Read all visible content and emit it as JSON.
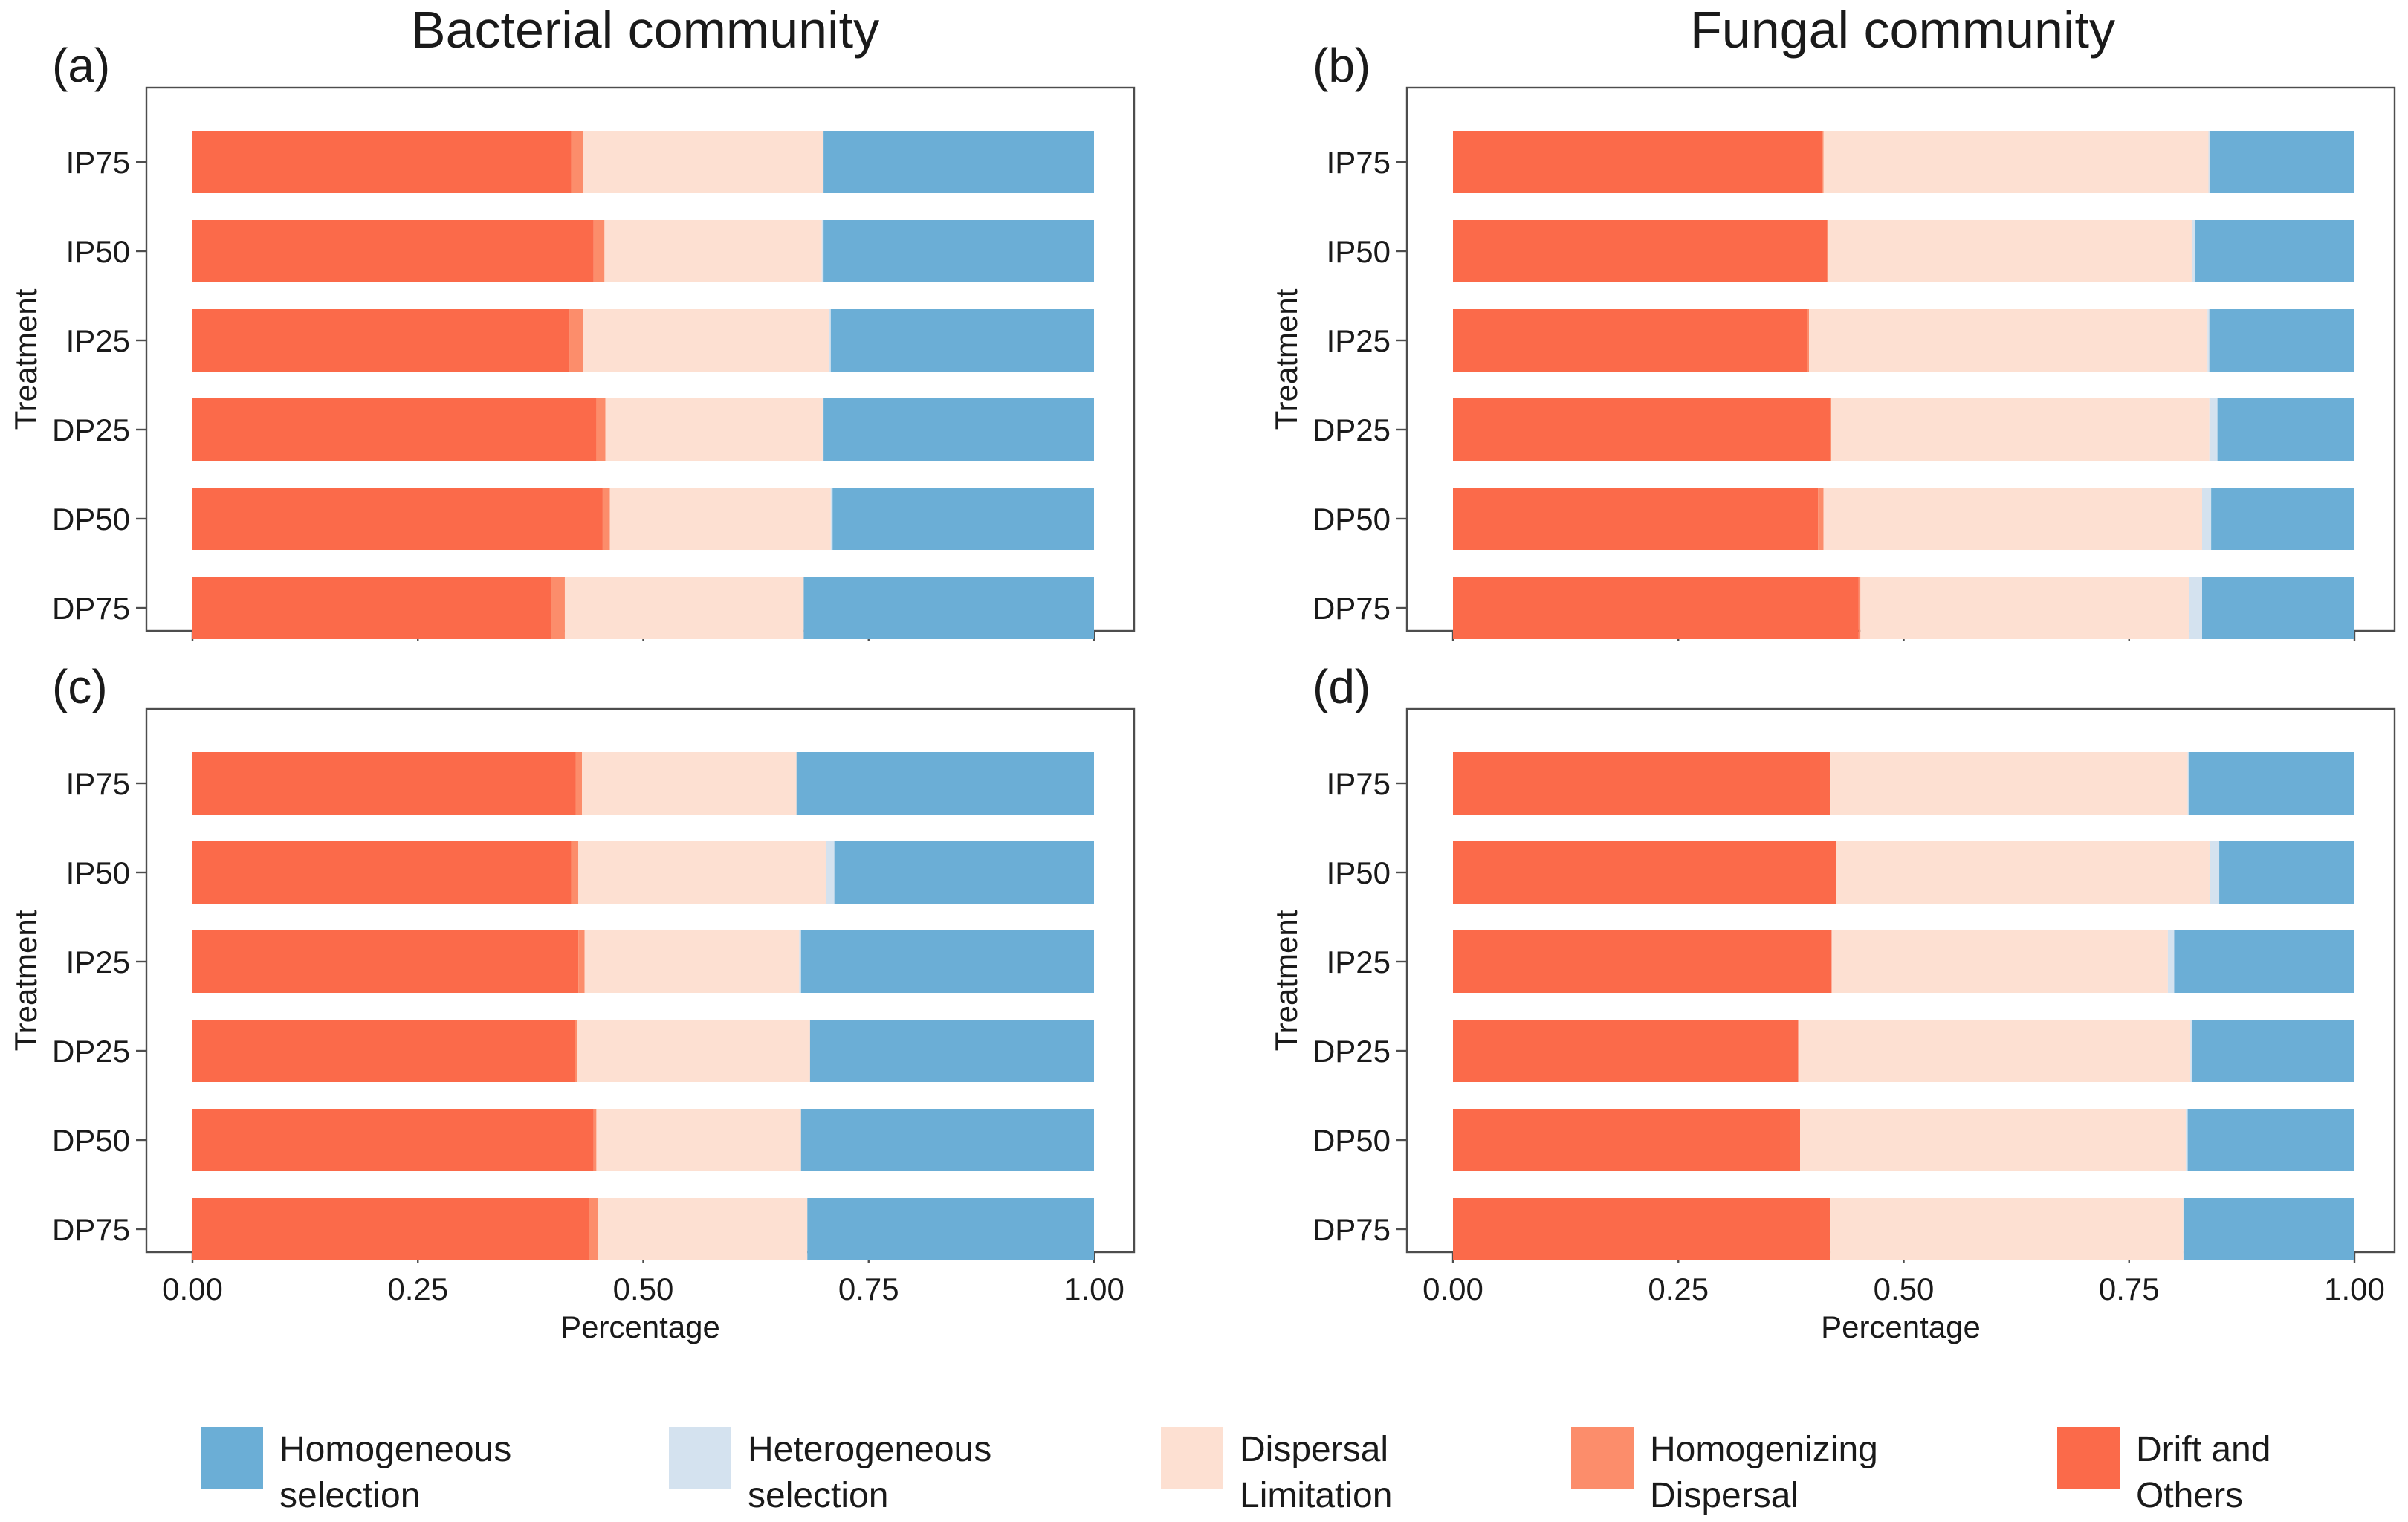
{
  "columns": [
    "Bacterial community",
    "Fungal community"
  ],
  "legend": [
    {
      "name": "Homogeneous selection",
      "line1": "Homogeneous",
      "line2": "selection",
      "color": "#6BAED6"
    },
    {
      "name": "Heterogeneous selection",
      "line1": "Heterogeneous",
      "line2": "selection",
      "color": "#D4E2EF"
    },
    {
      "name": "Dispersal Limitation",
      "line1": "Dispersal",
      "line2": "Limitation",
      "color": "#FDE0D2"
    },
    {
      "name": "Homogenizing Dispersal",
      "line1": "Homogenizing",
      "line2": "Dispersal",
      "color": "#FC8D6B"
    },
    {
      "name": "Drift and Others",
      "line1": "Drift and",
      "line2": "Others",
      "color": "#FB6A4A"
    }
  ],
  "chart_data": [
    {
      "panel": "(a)",
      "column": "Bacterial community",
      "type": "bar",
      "orientation": "horizontal",
      "stacked": true,
      "ylabel": "Treatment",
      "xlabel": "",
      "xlim": [
        0,
        1
      ],
      "xticks": [
        "0.00",
        "0.25",
        "0.50",
        "0.75",
        "1.00"
      ],
      "categories": [
        "IP75",
        "IP50",
        "IP25",
        "DP25",
        "DP50",
        "DP75"
      ],
      "series": [
        {
          "name": "Drift and Others",
          "values": [
            0.42,
            0.445,
            0.418,
            0.448,
            0.455,
            0.398
          ]
        },
        {
          "name": "Homogenizing Dispersal",
          "values": [
            0.013,
            0.012,
            0.015,
            0.01,
            0.008,
            0.015
          ]
        },
        {
          "name": "Dispersal Limitation",
          "values": [
            0.267,
            0.241,
            0.273,
            0.241,
            0.245,
            0.265
          ]
        },
        {
          "name": "Heterogeneous selection",
          "values": [
            0.0,
            0.002,
            0.002,
            0.001,
            0.002,
            0.0
          ]
        },
        {
          "name": "Homogeneous selection",
          "values": [
            0.3,
            0.3,
            0.292,
            0.3,
            0.29,
            0.322
          ]
        }
      ]
    },
    {
      "panel": "(b)",
      "column": "Fungal community",
      "type": "bar",
      "orientation": "horizontal",
      "stacked": true,
      "ylabel": "Treatment",
      "xlabel": "",
      "xlim": [
        0,
        1
      ],
      "xticks": [
        "0.00",
        "0.25",
        "0.50",
        "0.75",
        "1.00"
      ],
      "categories": [
        "IP75",
        "IP50",
        "IP25",
        "DP25",
        "DP50",
        "DP75"
      ],
      "series": [
        {
          "name": "Drift and Others",
          "values": [
            0.41,
            0.415,
            0.393,
            0.418,
            0.405,
            0.45
          ]
        },
        {
          "name": "Homogenizing Dispersal",
          "values": [
            0.001,
            0.001,
            0.002,
            0.001,
            0.006,
            0.002
          ]
        },
        {
          "name": "Dispersal Limitation",
          "values": [
            0.427,
            0.404,
            0.442,
            0.42,
            0.42,
            0.365
          ]
        },
        {
          "name": "Heterogeneous selection",
          "values": [
            0.002,
            0.003,
            0.002,
            0.009,
            0.01,
            0.014
          ]
        },
        {
          "name": "Homogeneous selection",
          "values": [
            0.16,
            0.177,
            0.161,
            0.152,
            0.159,
            0.169
          ]
        }
      ]
    },
    {
      "panel": "(c)",
      "column": "Bacterial community",
      "type": "bar",
      "orientation": "horizontal",
      "stacked": true,
      "ylabel": "Treatment",
      "xlabel": "Percentage",
      "xlim": [
        0,
        1
      ],
      "xticks": [
        "0.00",
        "0.25",
        "0.50",
        "0.75",
        "1.00"
      ],
      "categories": [
        "IP75",
        "IP50",
        "IP25",
        "DP25",
        "DP50",
        "DP75"
      ],
      "series": [
        {
          "name": "Drift and Others",
          "values": [
            0.425,
            0.42,
            0.428,
            0.424,
            0.445,
            0.44
          ]
        },
        {
          "name": "Homogenizing Dispersal",
          "values": [
            0.007,
            0.008,
            0.007,
            0.003,
            0.003,
            0.01
          ]
        },
        {
          "name": "Dispersal Limitation",
          "values": [
            0.238,
            0.275,
            0.238,
            0.258,
            0.227,
            0.232
          ]
        },
        {
          "name": "Heterogeneous selection",
          "values": [
            0.0,
            0.009,
            0.002,
            0.0,
            0.0,
            0.0
          ]
        },
        {
          "name": "Homogeneous selection",
          "values": [
            0.33,
            0.288,
            0.325,
            0.315,
            0.325,
            0.318
          ]
        }
      ]
    },
    {
      "panel": "(d)",
      "column": "Fungal community",
      "type": "bar",
      "orientation": "horizontal",
      "stacked": true,
      "ylabel": "Treatment",
      "xlabel": "Percentage",
      "xlim": [
        0,
        1
      ],
      "xticks": [
        "0.00",
        "0.25",
        "0.50",
        "0.75",
        "1.00"
      ],
      "categories": [
        "IP75",
        "IP50",
        "IP25",
        "DP25",
        "DP50",
        "DP75"
      ],
      "series": [
        {
          "name": "Drift and Others",
          "values": [
            0.418,
            0.425,
            0.42,
            0.383,
            0.385,
            0.418
          ]
        },
        {
          "name": "Homogenizing Dispersal",
          "values": [
            0.0,
            0.0,
            0.0,
            0.0,
            0.0,
            0.0
          ]
        },
        {
          "name": "Dispersal Limitation",
          "values": [
            0.397,
            0.415,
            0.373,
            0.435,
            0.428,
            0.392
          ]
        },
        {
          "name": "Heterogeneous selection",
          "values": [
            0.001,
            0.01,
            0.007,
            0.002,
            0.002,
            0.001
          ]
        },
        {
          "name": "Homogeneous selection",
          "values": [
            0.184,
            0.15,
            0.2,
            0.18,
            0.185,
            0.189
          ]
        }
      ]
    }
  ]
}
